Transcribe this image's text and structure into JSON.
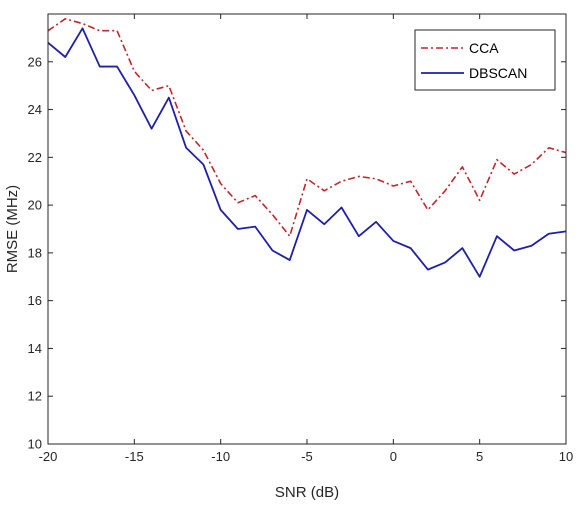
{
  "chart_data": {
    "type": "line",
    "xlabel": "SNR (dB)",
    "ylabel": "RMSE (MHz)",
    "xlim": [
      -20,
      10
    ],
    "ylim": [
      10,
      28
    ],
    "xticks": [
      -20,
      -15,
      -10,
      -5,
      0,
      5,
      10
    ],
    "yticks": [
      10,
      12,
      14,
      16,
      18,
      20,
      22,
      24,
      26
    ],
    "grid": false,
    "legend_position": "top-right",
    "x": [
      -20,
      -19,
      -18,
      -17,
      -16,
      -15,
      -14,
      -13,
      -12,
      -11,
      -10,
      -9,
      -8,
      -7,
      -6,
      -5,
      -4,
      -3,
      -2,
      -1,
      0,
      1,
      2,
      3,
      4,
      5,
      6,
      7,
      8,
      9,
      10
    ],
    "series": [
      {
        "name": "CCA",
        "color": "#c1272d",
        "line_style": "dash-dot",
        "values": [
          27.3,
          27.8,
          27.6,
          27.3,
          27.3,
          25.6,
          24.8,
          25.0,
          23.1,
          22.3,
          20.9,
          20.1,
          20.4,
          19.6,
          18.7,
          21.1,
          20.6,
          21.0,
          21.2,
          21.1,
          20.8,
          21.0,
          19.8,
          20.6,
          21.6,
          20.2,
          21.9,
          21.3,
          21.7,
          22.4,
          22.2
        ]
      },
      {
        "name": "DBSCAN",
        "color": "#1f1fa8",
        "line_style": "solid",
        "values": [
          26.8,
          26.2,
          27.4,
          25.8,
          25.8,
          24.6,
          23.2,
          24.5,
          22.4,
          21.7,
          19.8,
          19.0,
          19.1,
          18.1,
          17.7,
          19.8,
          19.2,
          19.9,
          18.7,
          19.3,
          18.5,
          18.2,
          17.3,
          17.6,
          18.2,
          17.0,
          18.7,
          18.1,
          18.3,
          18.8,
          18.9
        ]
      }
    ]
  }
}
